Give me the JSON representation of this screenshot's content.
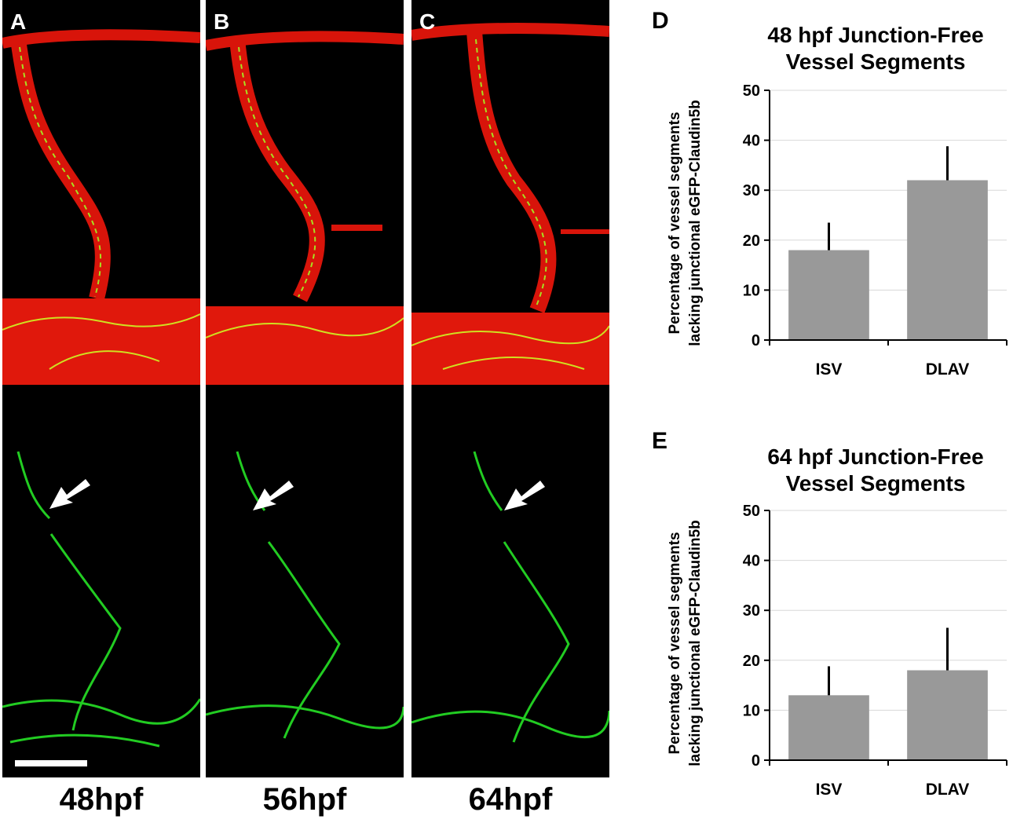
{
  "panels": [
    {
      "letter": "A",
      "time_label": "48hpf"
    },
    {
      "letter": "B",
      "time_label": "56hpf"
    },
    {
      "letter": "C",
      "time_label": "64hpf"
    }
  ],
  "colors": {
    "vessel": "#e01a0c",
    "junction": "#22dd22",
    "bar": "#999999",
    "background": "#000000",
    "arrow": "#ffffff"
  },
  "chart_data": [
    {
      "type": "bar",
      "panel": "D",
      "title_lines": [
        "48 hpf Junction-Free",
        "Vessel Segments"
      ],
      "ylabel_lines": [
        "Percentage of vessel segments",
        "lacking junctional eGFP-Claudin5b"
      ],
      "xlabel": "",
      "categories": [
        "ISV",
        "DLAV"
      ],
      "values": [
        18,
        32
      ],
      "error_upper": [
        5.5,
        6.8
      ],
      "ylim": [
        0,
        50
      ],
      "yticks": [
        0,
        10,
        20,
        30,
        40,
        50
      ],
      "grid": true,
      "bar_color": "#999999"
    },
    {
      "type": "bar",
      "panel": "E",
      "title_lines": [
        "64 hpf Junction-Free",
        "Vessel Segments"
      ],
      "ylabel_lines": [
        "Percentage of vessel segments",
        "lacking junctional eGFP-Claudin5b"
      ],
      "xlabel": "",
      "categories": [
        "ISV",
        "DLAV"
      ],
      "values": [
        13,
        18
      ],
      "error_upper": [
        5.8,
        8.5
      ],
      "ylim": [
        0,
        50
      ],
      "yticks": [
        0,
        10,
        20,
        30,
        40,
        50
      ],
      "grid": true,
      "bar_color": "#999999"
    }
  ]
}
